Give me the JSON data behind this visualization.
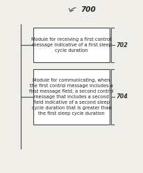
{
  "background_color": "#f0efea",
  "title_label": "700",
  "boxes": [
    {
      "text": "Module for receiving a first control\nmessage indicative of a first sleep\ncycle duration",
      "label": "702"
    },
    {
      "text": "Module for communicating, when\nthe first control message includes a\nfirst message field, a second control\nmessage that includes a second\nfield indicative of a second sleep\ncycle duration that is greater than\nthe first sleep cycle duration",
      "label": "704"
    }
  ],
  "font_size_box": 4.8,
  "font_size_label": 5.8,
  "font_size_title": 7.5,
  "box_line_color": "#444444",
  "text_color": "#222222",
  "line_color": "#555555",
  "label_color": "#333333"
}
